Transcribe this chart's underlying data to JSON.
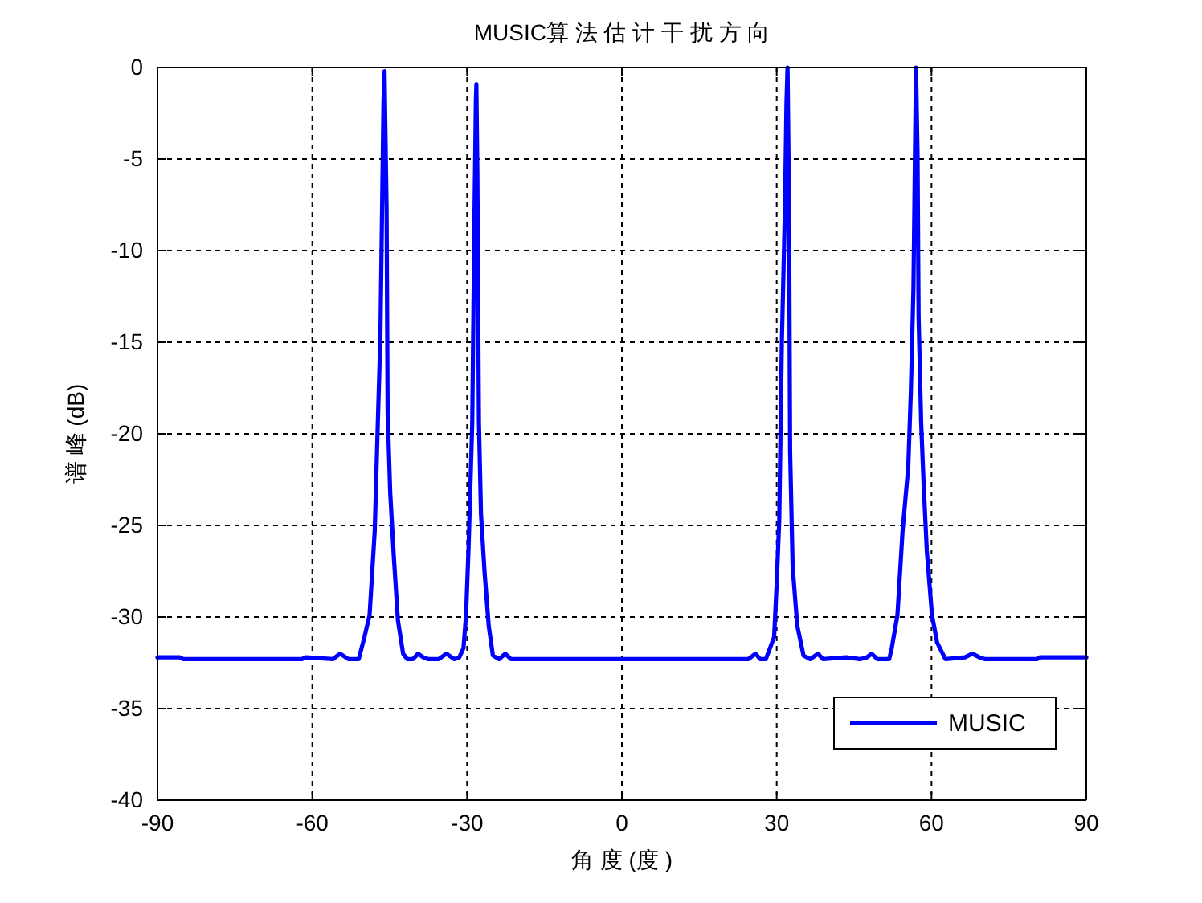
{
  "chart_data": {
    "type": "line",
    "title": "MUSIC算 法 估 计 干 扰 方 向",
    "xlabel": "角 度 (度 )",
    "ylabel": "谱 峰 (dB)",
    "xlim": [
      -90,
      90
    ],
    "ylim": [
      -40,
      0
    ],
    "xticks": [
      -90,
      -60,
      -30,
      0,
      30,
      60,
      90
    ],
    "yticks": [
      -40,
      -35,
      -30,
      -25,
      -20,
      -15,
      -10,
      -5,
      0
    ],
    "grid": true,
    "legend": "bottom right",
    "line_style": "solid",
    "series": [
      {
        "name": "MUSIC",
        "color": "#0000ff",
        "x": [
          -90,
          -85.7,
          -85,
          -62,
          -61.3,
          -56,
          -54.6,
          -53,
          -51,
          -49.9,
          -48.9,
          -47.9,
          -47.3,
          -46.8,
          -46.5,
          -46.2,
          -46.0,
          -45.8,
          -45.6,
          -45.4,
          -44.9,
          -44.2,
          -43.4,
          -42.4,
          -41.6,
          -40.5,
          -39.5,
          -38.5,
          -37.5,
          -35.5,
          -34.0,
          -32.5,
          -31.5,
          -30.7,
          -30.2,
          -29.7,
          -29.0,
          -28.65,
          -28.3,
          -28.2,
          -28.0,
          -27.9,
          -27.7,
          -27.3,
          -26.6,
          -25.8,
          -25.0,
          -23.8,
          -22.6,
          -21.5,
          -20.9,
          24.5,
          25.9,
          26.8,
          27.9,
          29.5,
          30.0,
          30.5,
          31.0,
          31.6,
          31.9,
          32.1,
          32.4,
          32.6,
          33.1,
          34.0,
          35.2,
          36.5,
          38.0,
          39.0,
          43.5,
          46.1,
          47.5,
          48.4,
          49.5,
          51.8,
          52.3,
          53.4,
          54.4,
          55.5,
          56.0,
          56.5,
          56.8,
          57.0,
          57.3,
          57.5,
          58.0,
          58.5,
          59.1,
          60.1,
          61.1,
          62.7,
          66.5,
          67.9,
          69.3,
          70.4,
          80.5,
          81,
          90
        ],
        "values": [
          -32.2,
          -32.2,
          -32.3,
          -32.3,
          -32.2,
          -32.3,
          -32.0,
          -32.3,
          -32.3,
          -31.1,
          -29.9,
          -25.3,
          -19.4,
          -14.7,
          -8.3,
          -1.9,
          -0.2,
          -4,
          -7.7,
          -18.8,
          -23.2,
          -26.7,
          -30.2,
          -32.0,
          -32.3,
          -32.3,
          -32.0,
          -32.2,
          -32.3,
          -32.3,
          -32.0,
          -32.3,
          -32.2,
          -31.7,
          -29.9,
          -26.1,
          -19.4,
          -10.1,
          -1.9,
          -0.9,
          -6,
          -10.7,
          -19.4,
          -24.4,
          -27.6,
          -30.5,
          -32.1,
          -32.3,
          -32.0,
          -32.3,
          -32.3,
          -32.3,
          -32.0,
          -32.3,
          -32.3,
          -31.1,
          -28.2,
          -24.7,
          -15.0,
          -7.7,
          -1.9,
          0,
          -7.7,
          -20.9,
          -27.3,
          -30.5,
          -32.1,
          -32.3,
          -32.0,
          -32.3,
          -32.2,
          -32.3,
          -32.2,
          -32.0,
          -32.3,
          -32.3,
          -31.7,
          -29.9,
          -25.3,
          -21.8,
          -17.7,
          -12.1,
          -4.8,
          0,
          -4.8,
          -13.6,
          -19.4,
          -22.9,
          -26.4,
          -29.9,
          -31.4,
          -32.3,
          -32.2,
          -32.0,
          -32.2,
          -32.3,
          -32.3,
          -32.2,
          -32.2
        ]
      }
    ]
  }
}
